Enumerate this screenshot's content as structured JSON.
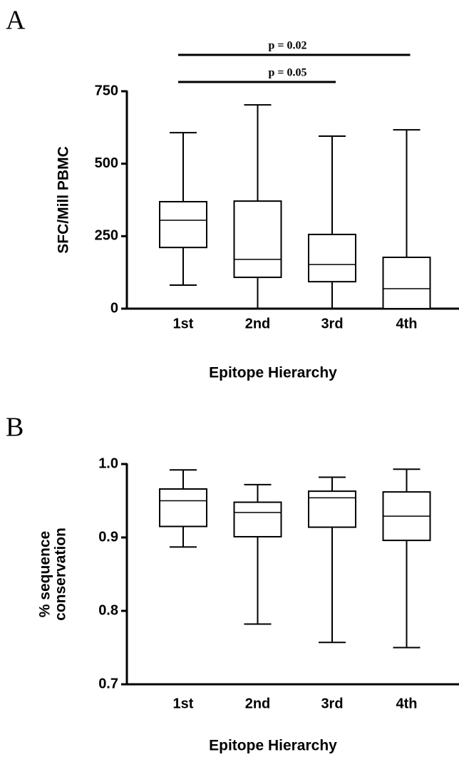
{
  "chart_data": [
    {
      "type": "box",
      "panel": "A",
      "ylabel": [
        "SFC/Mill PBMC"
      ],
      "xlabel": "Epitope Hierarchy",
      "categories": [
        "1st",
        "2nd",
        "3rd",
        "4th"
      ],
      "boxes": [
        {
          "min": 81,
          "q1": 211,
          "median": 305,
          "q3": 369,
          "max": 607
        },
        {
          "min": 0,
          "q1": 108,
          "median": 170,
          "q3": 371,
          "max": 703
        },
        {
          "min": 0,
          "q1": 93,
          "median": 152,
          "q3": 256,
          "max": 595
        },
        {
          "min": 0,
          "q1": 0,
          "median": 69,
          "q3": 177,
          "max": 617
        }
      ],
      "ylim": [
        0,
        750
      ],
      "yticks": [
        0,
        250,
        500,
        750
      ],
      "color": "#000000",
      "annotations": [
        {
          "text": "p = 0.02",
          "from": "1st",
          "to": "4th"
        },
        {
          "text": "p = 0.05",
          "from": "1st",
          "to": "3rd"
        }
      ]
    },
    {
      "type": "box",
      "panel": "B",
      "ylabel": [
        "% sequence",
        "conservation"
      ],
      "xlabel": "Epitope Hierarchy",
      "categories": [
        "1st",
        "2nd",
        "3rd",
        "4th"
      ],
      "boxes": [
        {
          "min": 0.887,
          "q1": 0.915,
          "median": 0.95,
          "q3": 0.966,
          "max": 0.992
        },
        {
          "min": 0.782,
          "q1": 0.901,
          "median": 0.934,
          "q3": 0.948,
          "max": 0.972
        },
        {
          "min": 0.757,
          "q1": 0.914,
          "median": 0.954,
          "q3": 0.963,
          "max": 0.982
        },
        {
          "min": 0.75,
          "q1": 0.896,
          "median": 0.929,
          "q3": 0.962,
          "max": 0.993
        }
      ],
      "ylim": [
        0.7,
        1
      ],
      "yticks": [
        0.7,
        0.8,
        0.9,
        {
          "value": 1,
          "label": "1.0"
        }
      ],
      "color": "#000000"
    }
  ]
}
